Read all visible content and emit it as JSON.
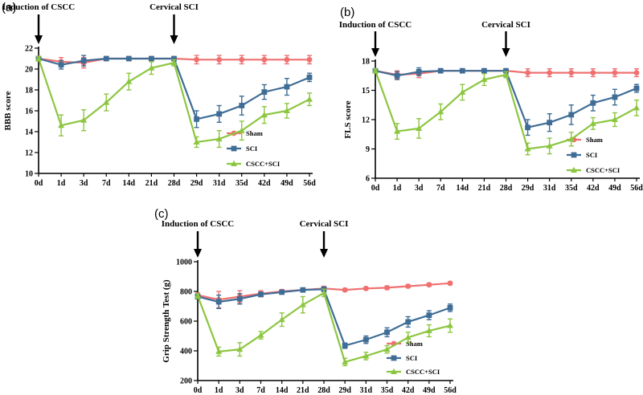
{
  "colors": {
    "sham": "#f07070",
    "sci": "#3f6d96",
    "cscc": "#8cc63f"
  },
  "chart_data": [
    {
      "panel": "(a)",
      "type": "line",
      "ylabel": "BBB score",
      "xlabel": "",
      "categories": [
        "0d",
        "1d",
        "3d",
        "7d",
        "14d",
        "21d",
        "28d",
        "29d",
        "31d",
        "35d",
        "42d",
        "49d",
        "56d"
      ],
      "ylim": [
        10,
        22
      ],
      "yticks": [
        10,
        12,
        14,
        16,
        18,
        20,
        22
      ],
      "annotations": [
        {
          "text": "Induction of CSCC",
          "at": "0d"
        },
        {
          "text": "Cervical SCI",
          "at": "28d"
        }
      ],
      "series": [
        {
          "name": "Sham",
          "key": "sham",
          "marker": "circle",
          "values": [
            21,
            20.7,
            20.6,
            21,
            21,
            21,
            21,
            20.9,
            20.9,
            20.9,
            20.9,
            20.9,
            20.9
          ],
          "errors": [
            0.2,
            0.4,
            0.5,
            0.1,
            0.1,
            0.1,
            0.1,
            0.4,
            0.4,
            0.4,
            0.4,
            0.4,
            0.4
          ]
        },
        {
          "name": "SCI",
          "key": "sci",
          "marker": "square",
          "values": [
            21,
            20.4,
            20.8,
            21,
            21,
            21,
            21,
            15.2,
            15.7,
            16.5,
            17.8,
            18.3,
            19.2
          ],
          "errors": [
            0.2,
            0.4,
            0.5,
            0.1,
            0.1,
            0.1,
            0.1,
            0.8,
            0.8,
            0.9,
            0.7,
            0.8,
            0.4
          ]
        },
        {
          "name": "CSCC+SCI",
          "key": "cscc",
          "marker": "triangle",
          "values": [
            21,
            14.6,
            15.1,
            16.8,
            18.8,
            20.1,
            20.6,
            13,
            13.3,
            14.1,
            15.6,
            16,
            17.1
          ],
          "errors": [
            0.2,
            1.0,
            1.0,
            0.8,
            0.8,
            0.6,
            0.3,
            0.5,
            0.8,
            0.9,
            0.8,
            0.7,
            0.6
          ]
        }
      ]
    },
    {
      "panel": "(b)",
      "type": "line",
      "ylabel": "FLS score",
      "xlabel": "",
      "categories": [
        "0d",
        "1d",
        "3d",
        "7d",
        "14d",
        "21d",
        "28d",
        "29d",
        "31d",
        "35d",
        "42d",
        "49d",
        "56d"
      ],
      "ylim": [
        6,
        18
      ],
      "yticks": [
        6,
        9,
        12,
        15,
        18
      ],
      "annotations": [
        {
          "text": "Induction of CSCC",
          "at": "0d"
        },
        {
          "text": "Cervical SCI",
          "at": "28d"
        }
      ],
      "series": [
        {
          "name": "Sham",
          "key": "sham",
          "marker": "circle",
          "values": [
            17,
            16.6,
            16.7,
            17,
            17,
            17,
            17,
            16.8,
            16.8,
            16.8,
            16.8,
            16.8,
            16.8
          ],
          "errors": [
            0.2,
            0.4,
            0.4,
            0.1,
            0.1,
            0.1,
            0.1,
            0.4,
            0.4,
            0.4,
            0.4,
            0.4,
            0.4
          ]
        },
        {
          "name": "SCI",
          "key": "sci",
          "marker": "square",
          "values": [
            17,
            16.5,
            16.9,
            17,
            17,
            17,
            17,
            11.2,
            11.7,
            12.5,
            13.7,
            14.3,
            15.2
          ],
          "errors": [
            0.2,
            0.4,
            0.4,
            0.1,
            0.1,
            0.1,
            0.1,
            0.8,
            0.9,
            1.0,
            0.8,
            0.8,
            0.4
          ]
        },
        {
          "name": "CSCC+SCI",
          "key": "cscc",
          "marker": "triangle",
          "values": [
            17,
            10.8,
            11.1,
            12.8,
            14.8,
            16.1,
            16.6,
            9,
            9.3,
            10,
            11.6,
            12,
            13.2
          ],
          "errors": [
            0.2,
            0.8,
            1.0,
            0.8,
            0.8,
            0.6,
            0.3,
            0.6,
            0.8,
            0.7,
            0.6,
            0.7,
            0.8
          ]
        }
      ]
    },
    {
      "panel": "(c)",
      "type": "line",
      "ylabel": "Grip Strength Test (g)",
      "xlabel": "",
      "categories": [
        "0d",
        "1d",
        "3d",
        "7d",
        "14d",
        "21d",
        "28d",
        "29d",
        "31d",
        "35d",
        "42d",
        "49d",
        "56d"
      ],
      "ylim": [
        200,
        1000
      ],
      "yticks": [
        200,
        400,
        600,
        800,
        1000
      ],
      "annotations": [
        {
          "text": "Induction of CSCC",
          "at": "0d"
        },
        {
          "text": "Cervical SCI",
          "at": "28d"
        }
      ],
      "series": [
        {
          "name": "Sham",
          "key": "sham",
          "marker": "circle",
          "values": [
            775,
            745,
            765,
            785,
            800,
            810,
            820,
            810,
            820,
            825,
            835,
            845,
            855
          ],
          "errors": [
            15,
            55,
            40,
            20,
            12,
            12,
            15,
            10,
            10,
            12,
            10,
            10,
            10
          ]
        },
        {
          "name": "SCI",
          "key": "sci",
          "marker": "square",
          "values": [
            765,
            730,
            750,
            780,
            795,
            810,
            815,
            435,
            475,
            525,
            595,
            640,
            690
          ],
          "errors": [
            15,
            45,
            35,
            15,
            12,
            12,
            15,
            18,
            25,
            30,
            35,
            30,
            25
          ]
        },
        {
          "name": "CSCC+SCI",
          "key": "cscc",
          "marker": "triangle",
          "values": [
            770,
            395,
            410,
            505,
            610,
            710,
            790,
            325,
            365,
            410,
            490,
            535,
            570
          ],
          "errors": [
            15,
            30,
            45,
            25,
            45,
            55,
            25,
            25,
            25,
            25,
            35,
            40,
            45
          ]
        }
      ]
    }
  ]
}
